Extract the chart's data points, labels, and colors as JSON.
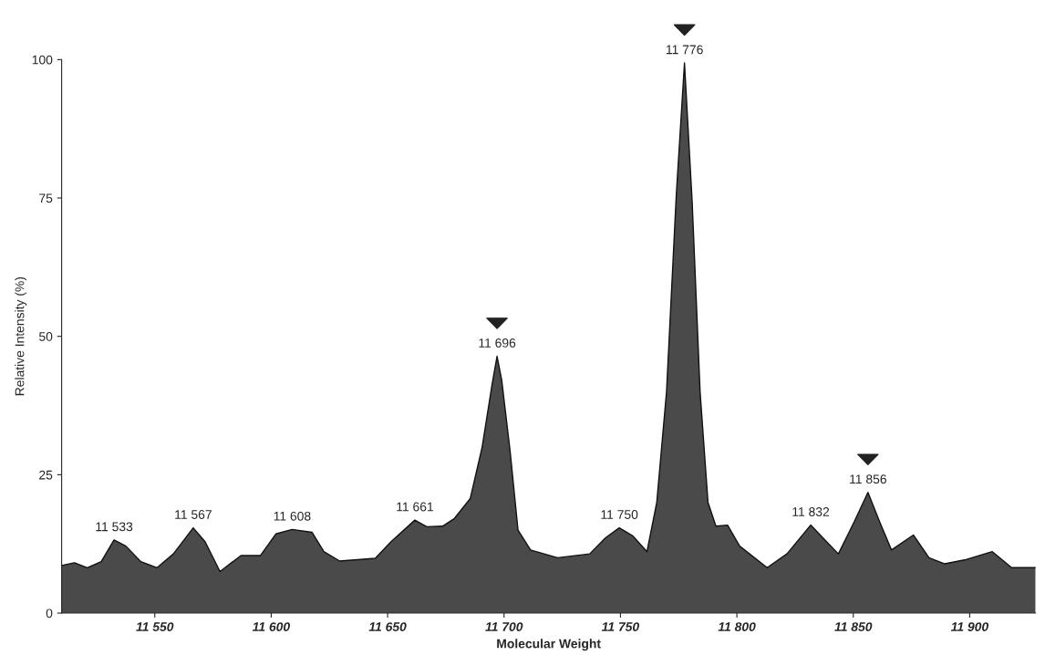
{
  "chart_data": {
    "type": "area",
    "xlabel": "Molecular Weight",
    "ylabel": "Relative Intensity (%)",
    "x": [
      11510,
      11515.5,
      11521,
      11527,
      11532.5,
      11537.6,
      11544,
      11551,
      11558,
      11566.5,
      11571.6,
      11578,
      11587,
      11595.4,
      11602,
      11609,
      11617.5,
      11622.6,
      11629.4,
      11644.7,
      11651.5,
      11661.7,
      11666.8,
      11673.6,
      11678.7,
      11685.5,
      11690.6,
      11694.9,
      11697,
      11699,
      11702.6,
      11706,
      11711.4,
      11723,
      11736.8,
      11743.6,
      11749.5,
      11755.4,
      11761.4,
      11765.6,
      11769.8,
      11774,
      11777.5,
      11780.8,
      11784.2,
      11787.6,
      11791,
      11796,
      11801.2,
      11813,
      11821.5,
      11831.7,
      11838.5,
      11843.6,
      11850.3,
      11856.3,
      11861.4,
      11866.4,
      11875.8,
      11882.5,
      11889.3,
      11897.8,
      11909.7,
      11918,
      11928.3
    ],
    "series": [
      {
        "color": "#4a4a4a",
        "values": [
          8.6,
          9.1,
          8.2,
          9.3,
          13.2,
          12.1,
          9.3,
          8.2,
          10.7,
          15.4,
          12.9,
          7.5,
          10.4,
          10.4,
          14.3,
          15.1,
          14.6,
          11.1,
          9.4,
          9.9,
          12.9,
          16.8,
          15.6,
          15.7,
          17.1,
          20.7,
          30,
          41.4,
          46.4,
          42.1,
          29.3,
          15,
          11.4,
          10,
          10.7,
          13.6,
          15.4,
          13.9,
          11.1,
          20,
          40,
          75.7,
          99.4,
          74.3,
          40,
          20,
          15.7,
          15.9,
          12.1,
          8.2,
          10.7,
          15.9,
          12.9,
          10.7,
          16.4,
          21.8,
          16.4,
          11.4,
          14.1,
          10,
          8.9,
          9.6,
          11.1,
          8.2,
          8.2
        ]
      }
    ],
    "xlim": [
      11510,
      11928.3
    ],
    "ylim": [
      0,
      100
    ],
    "xticks": [
      {
        "value": 11550,
        "label": "11 550"
      },
      {
        "value": 11600,
        "label": "11 600"
      },
      {
        "value": 11650,
        "label": "11 650"
      },
      {
        "value": 11700,
        "label": "11 700"
      },
      {
        "value": 11750,
        "label": "11 750"
      },
      {
        "value": 11800,
        "label": "11 800"
      },
      {
        "value": 11850,
        "label": "11 850"
      },
      {
        "value": 11900,
        "label": "11 900"
      }
    ],
    "yticks": [
      0,
      25,
      50,
      75,
      100
    ],
    "grid": false,
    "legend": false,
    "annotations": [
      {
        "text": "11 533",
        "x": 11532.5,
        "y": 13.2
      },
      {
        "text": "11 567",
        "x": 11566.5,
        "y": 15.4
      },
      {
        "text": "11 608",
        "x": 11609,
        "y": 15.1
      },
      {
        "text": "11 661",
        "x": 11661.7,
        "y": 16.8
      },
      {
        "text": "11 696",
        "x": 11697,
        "y": 46.4
      },
      {
        "text": "11 750",
        "x": 11749.5,
        "y": 15.4
      },
      {
        "text": "11 776",
        "x": 11777.5,
        "y": 99.4
      },
      {
        "text": "11 832",
        "x": 11831.7,
        "y": 15.9
      },
      {
        "text": "11 856",
        "x": 11856.3,
        "y": 21.8
      }
    ]
  }
}
